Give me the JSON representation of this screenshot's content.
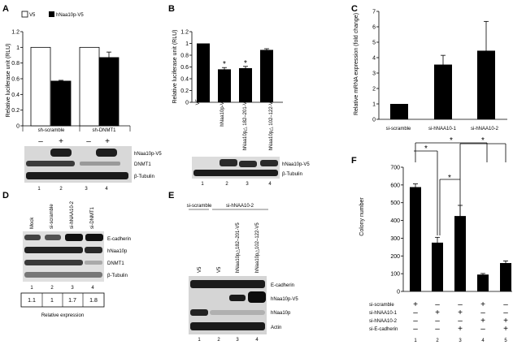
{
  "panels": {
    "A": {
      "label": "A",
      "legend": [
        {
          "name": "V5",
          "color": "#ffffff"
        },
        {
          "name": "hNaa10p-V5",
          "color": "#000000"
        }
      ],
      "ylabel": "Relative luciferase unit (RLU)",
      "yticks": [
        "0",
        "0.2",
        "0.4",
        "0.6",
        "0.8",
        "1",
        "1.2"
      ],
      "group_labels": [
        "sh-scramble",
        "sh-DNMT1"
      ],
      "signs": [
        "–",
        "+",
        "–",
        "+"
      ],
      "blot_labels": [
        "hNaa10p-V5",
        "DNMT1",
        "β-Tubulin"
      ],
      "lanes": [
        "1",
        "2",
        "3",
        "4"
      ]
    },
    "B": {
      "label": "B",
      "ylabel": "Relative luciferase unit (RLU)",
      "yticks": [
        "0",
        "0.2",
        "0.4",
        "0.6",
        "0.8",
        "1",
        "1.2"
      ],
      "xlabels": [
        "V5",
        "hNaa10p-V5",
        "hNaa10p△ 182–201-V5",
        "hNaa10p△ 102–122-V5"
      ],
      "star": "*",
      "blot_labels": [
        "hNaa10p-V5",
        "β-Tubulin"
      ],
      "lanes": [
        "1",
        "2",
        "3",
        "4"
      ]
    },
    "C": {
      "label": "C",
      "ylabel": "Relative mRNA expression (fold change)",
      "yticks": [
        "0",
        "1",
        "2",
        "3",
        "4",
        "5",
        "6",
        "7"
      ],
      "xlabels": [
        "si-scramble",
        "si-hNAA10-1",
        "si-hNAA10-2"
      ]
    },
    "D": {
      "label": "D",
      "col_headers": [
        "Mock",
        "si-scramble",
        "si-hNAA10-2",
        "si-DNMT1"
      ],
      "blot_labels": [
        "E-cadherin",
        "hNaa10p",
        "DNMT1",
        "β-Tubulin"
      ],
      "lanes": [
        "1",
        "2",
        "3",
        "4"
      ],
      "relative_values": [
        "1.1",
        "1",
        "1.7",
        "1.8"
      ],
      "footer": "Relative expression"
    },
    "E": {
      "label": "E",
      "group_headers": [
        "si-scramble",
        "si-hNAA10-2"
      ],
      "col_headers": [
        "V5",
        "V5",
        "hNaa10p△182–201-V5",
        "hNaa10p△102–122-V5"
      ],
      "blot_labels": [
        "E-cadherin",
        "hNaa10p-V5",
        "hNaa10p",
        "Actin"
      ],
      "lanes": [
        "1",
        "2",
        "3",
        "4"
      ]
    },
    "F": {
      "label": "F",
      "ylabel": "Colony number",
      "yticks": [
        "0",
        "100",
        "200",
        "300",
        "400",
        "500",
        "600",
        "700"
      ],
      "row_labels": [
        "si-scramble",
        "si-hNAA10-1",
        "si-hNAA10-2",
        "si-E-cadherin"
      ],
      "signs": [
        [
          "+",
          "–",
          "–",
          "+",
          "–"
        ],
        [
          "–",
          "+",
          "+",
          "–",
          "–"
        ],
        [
          "–",
          "–",
          "–",
          "+",
          "+"
        ],
        [
          "–",
          "–",
          "+",
          "–",
          "+"
        ]
      ],
      "lanes": [
        "1",
        "2",
        "3",
        "4",
        "5"
      ],
      "star": "*"
    }
  },
  "chart_data": [
    {
      "panel": "A",
      "type": "bar",
      "categories": [
        "sh-scramble",
        "sh-DNMT1"
      ],
      "series": [
        {
          "name": "V5",
          "values": [
            1.0,
            1.0
          ],
          "errors": [
            0,
            0
          ]
        },
        {
          "name": "hNaa10p-V5",
          "values": [
            0.57,
            0.87
          ],
          "errors": [
            0.01,
            0.07
          ]
        }
      ],
      "ylabel": "Relative luciferase unit (RLU)",
      "ylim": [
        0,
        1.2
      ]
    },
    {
      "panel": "B",
      "type": "bar",
      "categories": [
        "V5",
        "hNaa10p-V5",
        "hNaa10p△ 182–201-V5",
        "hNaa10p△ 102–122-V5"
      ],
      "values": [
        1.0,
        0.56,
        0.58,
        0.89
      ],
      "errors": [
        0,
        0.03,
        0.03,
        0.02
      ],
      "ylabel": "Relative luciferase unit (RLU)",
      "ylim": [
        0,
        1.2
      ]
    },
    {
      "panel": "C",
      "type": "bar",
      "categories": [
        "si-scramble",
        "si-hNAA10-1",
        "si-hNAA10-2"
      ],
      "values": [
        1.0,
        3.55,
        4.45
      ],
      "errors": [
        0,
        0.6,
        1.9
      ],
      "ylabel": "Relative mRNA expression (fold change)",
      "ylim": [
        0,
        7
      ]
    },
    {
      "panel": "F",
      "type": "bar",
      "categories": [
        "1",
        "2",
        "3",
        "4",
        "5"
      ],
      "values": [
        588,
        275,
        425,
        95,
        160
      ],
      "errors": [
        18,
        30,
        60,
        6,
        12
      ],
      "ylabel": "Colony number",
      "ylim": [
        0,
        700
      ]
    }
  ]
}
